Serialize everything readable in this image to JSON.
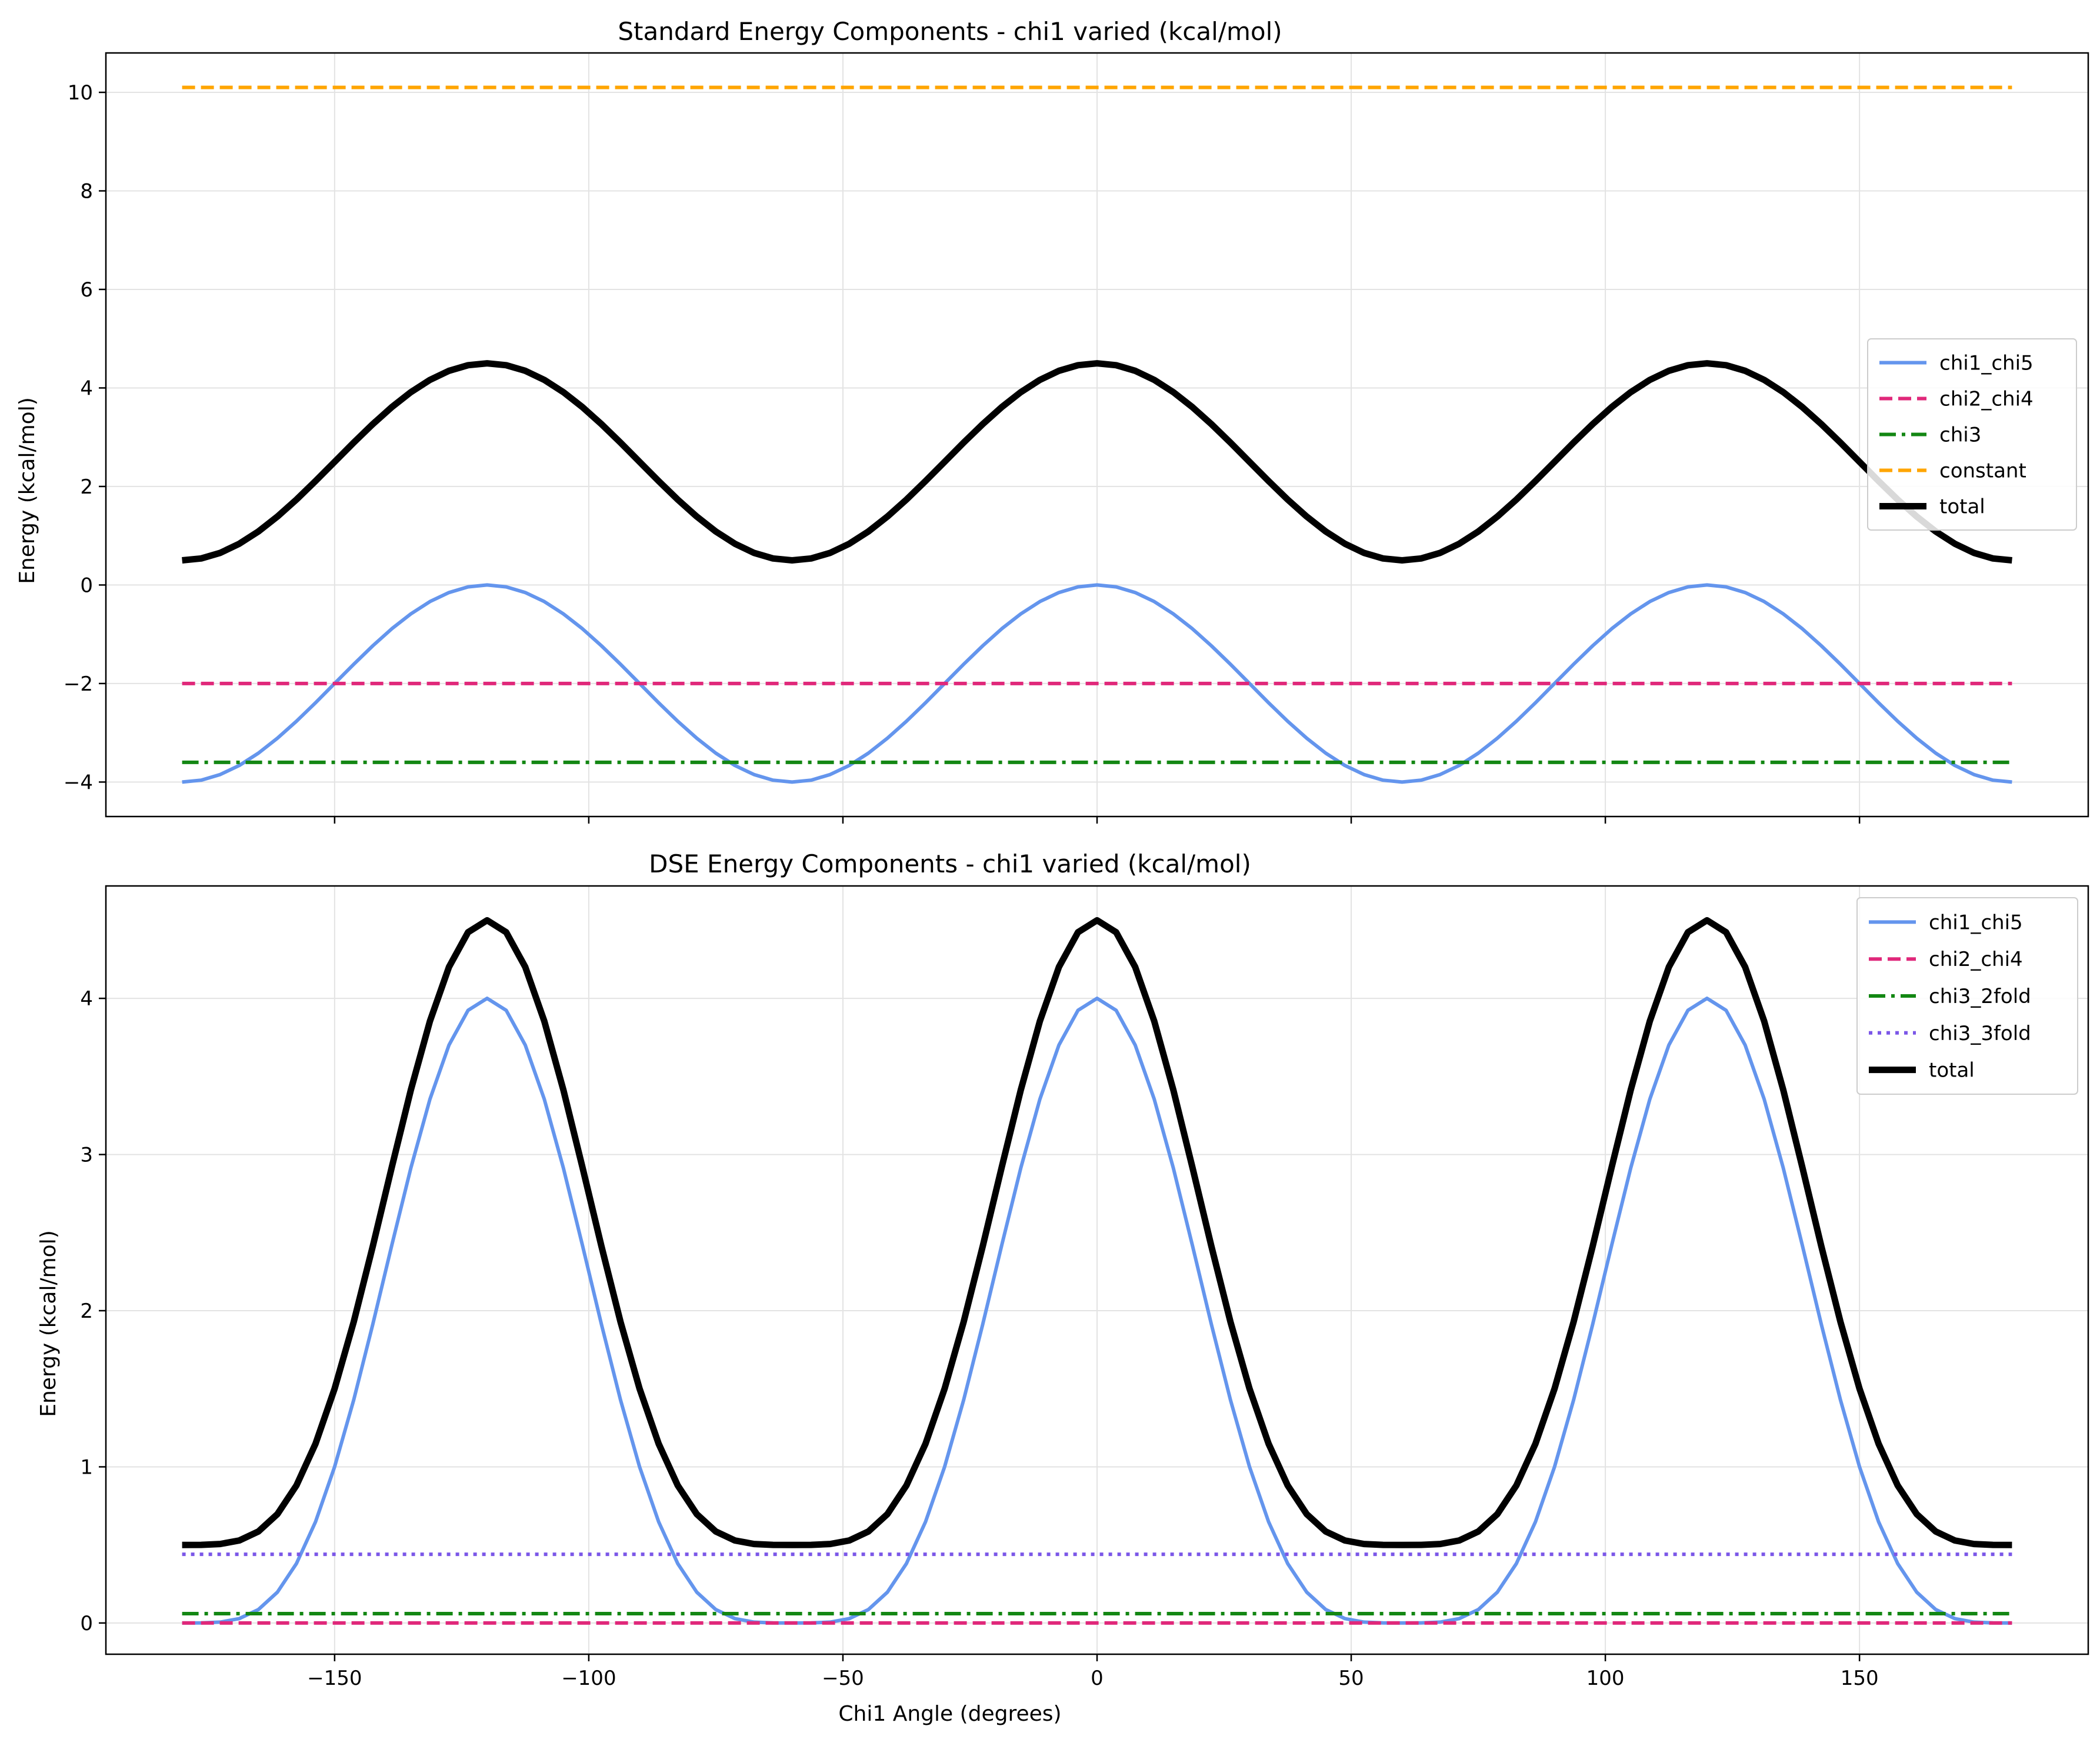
{
  "chart_data": [
    {
      "type": "line",
      "title": "Standard Energy Components - chi1 varied (kcal/mol)",
      "xlabel": "",
      "ylabel": "Energy (kcal/mol)",
      "xlim": [
        -195,
        195
      ],
      "ylim": [
        -4.7,
        10.8
      ],
      "xticks": [
        -150,
        -100,
        -50,
        0,
        50,
        100,
        150
      ],
      "xtick_labels": [
        "",
        "",
        "",
        "",
        "",
        "",
        ""
      ],
      "yticks": [
        -4,
        -2,
        0,
        2,
        4,
        6,
        8,
        10
      ],
      "ytick_labels": [
        "−4",
        "−2",
        "0",
        "2",
        "4",
        "6",
        "8",
        "10"
      ],
      "grid": true,
      "legend_position": "right",
      "x": [
        -180,
        180
      ],
      "samples": 97,
      "series": [
        {
          "name": "chi1_chi5",
          "color": "#6495ed",
          "style": "solid",
          "formula": "cos3",
          "amplitude": 2,
          "offset": -2
        },
        {
          "name": "chi2_chi4",
          "color": "#e0287a",
          "style": "dashed",
          "formula": "const",
          "value": -2
        },
        {
          "name": "chi3",
          "color": "#138713",
          "style": "dashdot",
          "formula": "const",
          "value": -3.6
        },
        {
          "name": "constant",
          "color": "#ffa500",
          "style": "dashed",
          "formula": "const",
          "value": 10.1
        },
        {
          "name": "total",
          "color": "#000000",
          "style": "solid-thick",
          "formula": "cos3",
          "amplitude": 2,
          "offset": 2.5
        }
      ]
    },
    {
      "type": "line",
      "title": "DSE Energy Components - chi1 varied (kcal/mol)",
      "xlabel": "Chi1 Angle (degrees)",
      "ylabel": "Energy (kcal/mol)",
      "xlim": [
        -195,
        195
      ],
      "ylim": [
        -0.2,
        4.72
      ],
      "xticks": [
        -150,
        -100,
        -50,
        0,
        50,
        100,
        150
      ],
      "xtick_labels": [
        "−150",
        "−100",
        "−50",
        "0",
        "50",
        "100",
        "150"
      ],
      "yticks": [
        0,
        1,
        2,
        3,
        4
      ],
      "ytick_labels": [
        "0",
        "1",
        "2",
        "3",
        "4"
      ],
      "grid": true,
      "legend_position": "upper right",
      "x": [
        -180,
        180
      ],
      "samples": 97,
      "series": [
        {
          "name": "chi1_chi5",
          "color": "#6495ed",
          "style": "solid",
          "formula": "cos3pow",
          "amplitude": 4,
          "power": 2,
          "offset": 0
        },
        {
          "name": "chi2_chi4",
          "color": "#e0287a",
          "style": "dashed",
          "formula": "const",
          "value": 0.0
        },
        {
          "name": "chi3_2fold",
          "color": "#138713",
          "style": "dashdot",
          "formula": "const",
          "value": 0.06
        },
        {
          "name": "chi3_3fold",
          "color": "#7b57e8",
          "style": "dotted",
          "formula": "const",
          "value": 0.44
        },
        {
          "name": "total",
          "color": "#000000",
          "style": "solid-thick",
          "formula": "cos3pow",
          "amplitude": 4,
          "power": 2,
          "offset": 0.5
        }
      ]
    }
  ]
}
